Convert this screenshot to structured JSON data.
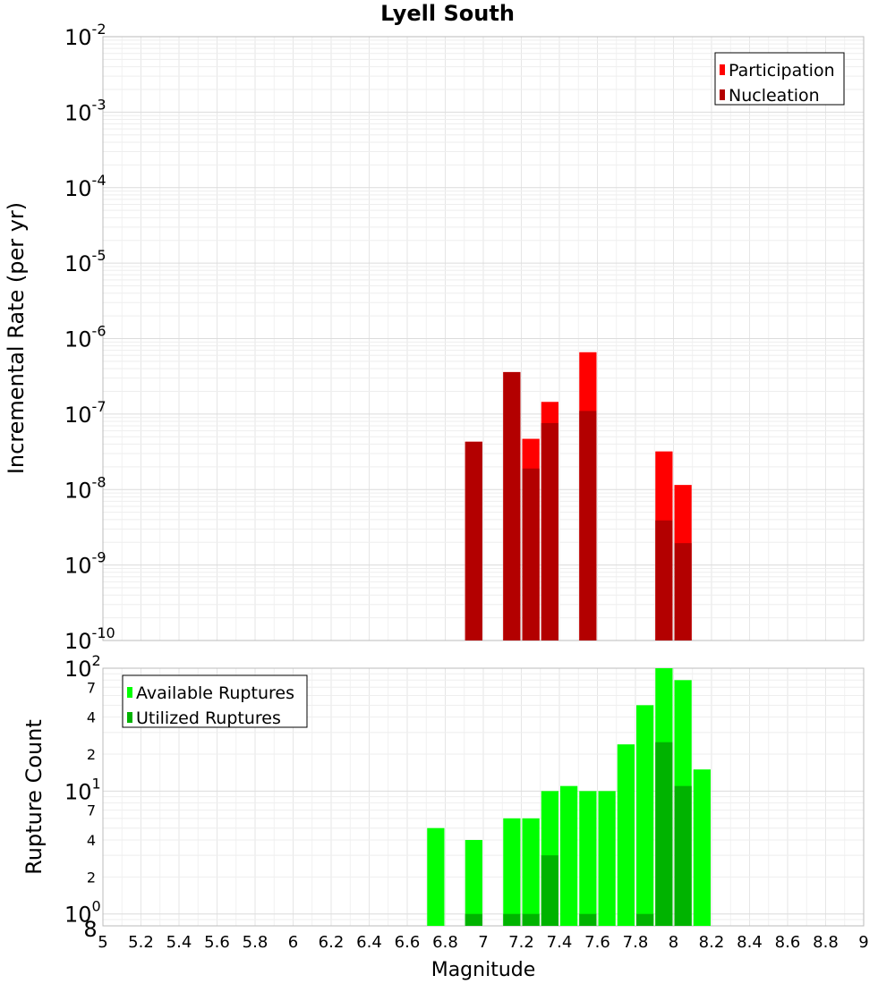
{
  "chart_data": [
    {
      "type": "bar",
      "title": "Lyell South",
      "xlabel": "",
      "ylabel": "Incremental Rate (per yr)",
      "yscale": "log",
      "ylim": [
        1e-10,
        0.01
      ],
      "xlim": [
        5,
        9
      ],
      "bar_width": 0.1,
      "y_major_ticks": [
        {
          "value": 1e-10,
          "base": "10",
          "exp": "-10"
        },
        {
          "value": 1e-09,
          "base": "10",
          "exp": "-9"
        },
        {
          "value": 1e-08,
          "base": "10",
          "exp": "-8"
        },
        {
          "value": 1e-07,
          "base": "10",
          "exp": "-7"
        },
        {
          "value": 1e-06,
          "base": "10",
          "exp": "-6"
        },
        {
          "value": 1e-05,
          "base": "10",
          "exp": "-5"
        },
        {
          "value": 0.0001,
          "base": "10",
          "exp": "-4"
        },
        {
          "value": 0.001,
          "base": "10",
          "exp": "-3"
        },
        {
          "value": 0.01,
          "base": "10",
          "exp": "-2"
        }
      ],
      "legend_position": "top-right",
      "series": [
        {
          "name": "Participation",
          "color": "#ff0000",
          "points": [
            {
              "x": 6.95,
              "y": 4.3e-08
            },
            {
              "x": 7.15,
              "y": 3.6e-07
            },
            {
              "x": 7.25,
              "y": 4.7e-08
            },
            {
              "x": 7.35,
              "y": 1.45e-07
            },
            {
              "x": 7.55,
              "y": 6.6e-07
            },
            {
              "x": 7.95,
              "y": 3.2e-08
            },
            {
              "x": 8.05,
              "y": 1.15e-08
            }
          ]
        },
        {
          "name": "Nucleation",
          "color": "#b30000",
          "points": [
            {
              "x": 6.95,
              "y": 4.3e-08
            },
            {
              "x": 7.15,
              "y": 3.6e-07
            },
            {
              "x": 7.25,
              "y": 1.9e-08
            },
            {
              "x": 7.35,
              "y": 7.6e-08
            },
            {
              "x": 7.55,
              "y": 1.1e-07
            },
            {
              "x": 7.95,
              "y": 3.9e-09
            },
            {
              "x": 8.05,
              "y": 1.95e-09
            }
          ]
        }
      ]
    },
    {
      "type": "bar",
      "title": "",
      "xlabel": "Magnitude",
      "ylabel": "Rupture Count",
      "yscale": "log",
      "ylim": [
        0.8,
        100
      ],
      "xlim": [
        5,
        9
      ],
      "bar_width": 0.1,
      "x_ticks": [
        "5",
        "5.2",
        "5.4",
        "5.6",
        "5.8",
        "6",
        "6.2",
        "6.4",
        "6.6",
        "6.8",
        "7",
        "7.2",
        "7.4",
        "7.6",
        "7.8",
        "8",
        "8.2",
        "8.4",
        "8.6",
        "8.8",
        "9"
      ],
      "y_major_ticks": [
        {
          "value": 1,
          "base": "10",
          "exp": "0"
        },
        {
          "value": 10,
          "base": "10",
          "exp": "1"
        },
        {
          "value": 100,
          "base": "10",
          "exp": "2"
        }
      ],
      "y_minor_ticks": [
        {
          "value": 0.8,
          "label": "8"
        },
        {
          "value": 2,
          "label": "2"
        },
        {
          "value": 4,
          "label": "4"
        },
        {
          "value": 7,
          "label": "7"
        },
        {
          "value": 20,
          "label": "2"
        },
        {
          "value": 40,
          "label": "4"
        },
        {
          "value": 70,
          "label": "7"
        }
      ],
      "legend_position": "top-left",
      "series": [
        {
          "name": "Available Ruptures",
          "color": "#00ff00",
          "points": [
            {
              "x": 6.75,
              "y": 5
            },
            {
              "x": 6.95,
              "y": 4
            },
            {
              "x": 7.15,
              "y": 6
            },
            {
              "x": 7.25,
              "y": 6
            },
            {
              "x": 7.35,
              "y": 10
            },
            {
              "x": 7.45,
              "y": 11
            },
            {
              "x": 7.55,
              "y": 10
            },
            {
              "x": 7.65,
              "y": 10
            },
            {
              "x": 7.75,
              "y": 24
            },
            {
              "x": 7.85,
              "y": 50
            },
            {
              "x": 7.95,
              "y": 100
            },
            {
              "x": 8.05,
              "y": 80
            },
            {
              "x": 8.15,
              "y": 15
            }
          ]
        },
        {
          "name": "Utilized Ruptures",
          "color": "#00b300",
          "points": [
            {
              "x": 6.95,
              "y": 1
            },
            {
              "x": 7.15,
              "y": 1
            },
            {
              "x": 7.25,
              "y": 1
            },
            {
              "x": 7.35,
              "y": 3
            },
            {
              "x": 7.55,
              "y": 1
            },
            {
              "x": 7.85,
              "y": 1
            },
            {
              "x": 7.95,
              "y": 25
            },
            {
              "x": 8.05,
              "y": 11
            }
          ]
        }
      ]
    }
  ]
}
